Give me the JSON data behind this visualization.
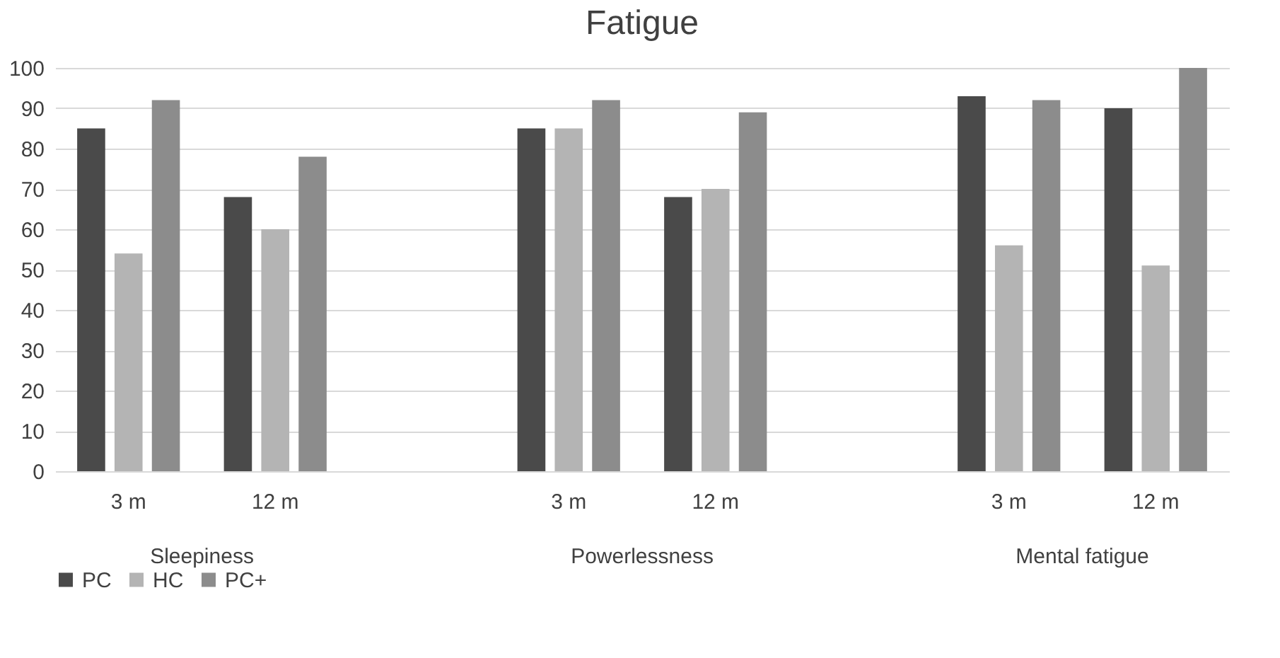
{
  "chart_data": {
    "type": "bar",
    "title": "Fatigue",
    "categories": [
      "3 m",
      "12 m",
      "3 m",
      "12 m",
      "3 m",
      "12 m"
    ],
    "series": [
      {
        "name": "PC",
        "color": "#4a4a4a",
        "values": [
          85,
          68,
          85,
          68,
          93,
          90
        ]
      },
      {
        "name": "HC",
        "color": "#b4b4b4",
        "values": [
          54,
          60,
          85,
          70,
          56,
          51
        ]
      },
      {
        "name": "PC+",
        "color": "#8c8c8c",
        "values": [
          92,
          78,
          92,
          89,
          92,
          100
        ]
      }
    ],
    "ylim": [
      0,
      100
    ],
    "yticks": [
      0,
      10,
      20,
      30,
      40,
      50,
      60,
      70,
      80,
      90,
      100
    ],
    "grid": "y",
    "legend": "bottom",
    "annotations": [
      "Sleepiness",
      "Powerlessness",
      "Mental fatigue"
    ]
  }
}
